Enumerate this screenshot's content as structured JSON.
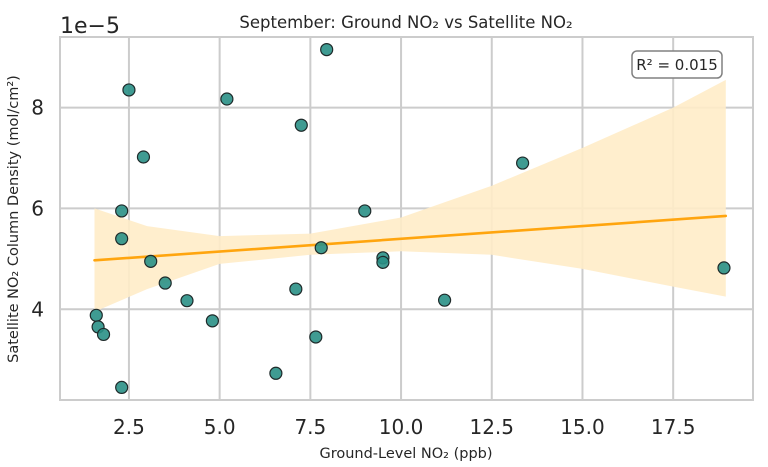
{
  "chart_data": {
    "type": "scatter",
    "title": "September: Ground NO₂ vs Satellite NO₂",
    "xlabel": "Ground-Level NO₂ (ppb)",
    "ylabel": "Satellite NO₂ Column Density (mol/cm²)",
    "y_offset_text": "1e−5",
    "annotation": {
      "r2_label": "R² = 0.015",
      "placement": "top-right"
    },
    "xlim": [
      0.6,
      19.7
    ],
    "ylim": [
      2.2,
      9.4
    ],
    "x_ticks": [
      2.5,
      5.0,
      7.5,
      10.0,
      12.5,
      15.0,
      17.5
    ],
    "x_tick_labels": [
      "2.5",
      "5.0",
      "7.5",
      "10.0",
      "12.5",
      "15.0",
      "17.5"
    ],
    "y_ticks": [
      4,
      6,
      8
    ],
    "y_tick_labels": [
      "4",
      "6",
      "8"
    ],
    "grid": true,
    "colors": {
      "points": "#2a9086",
      "point_edge": "#1e2a2a",
      "regression_line": "#ffa50f",
      "confidence_band": "#ffecc8",
      "grid": "#cccccc",
      "axes": "#cccccc"
    },
    "points": [
      {
        "x": 1.6,
        "y": 3.88
      },
      {
        "x": 1.65,
        "y": 3.65
      },
      {
        "x": 1.8,
        "y": 3.5
      },
      {
        "x": 2.3,
        "y": 2.45
      },
      {
        "x": 2.3,
        "y": 5.95
      },
      {
        "x": 2.3,
        "y": 5.4
      },
      {
        "x": 2.5,
        "y": 8.35
      },
      {
        "x": 2.9,
        "y": 7.02
      },
      {
        "x": 3.1,
        "y": 4.95
      },
      {
        "x": 3.5,
        "y": 4.52
      },
      {
        "x": 4.1,
        "y": 4.17
      },
      {
        "x": 4.8,
        "y": 3.77
      },
      {
        "x": 5.2,
        "y": 8.17
      },
      {
        "x": 6.55,
        "y": 2.73
      },
      {
        "x": 7.1,
        "y": 4.4
      },
      {
        "x": 7.25,
        "y": 7.65
      },
      {
        "x": 7.65,
        "y": 3.45
      },
      {
        "x": 7.8,
        "y": 5.22
      },
      {
        "x": 7.95,
        "y": 9.15
      },
      {
        "x": 9.0,
        "y": 5.95
      },
      {
        "x": 9.5,
        "y": 5.02
      },
      {
        "x": 9.5,
        "y": 4.93
      },
      {
        "x": 11.2,
        "y": 4.18
      },
      {
        "x": 13.35,
        "y": 6.9
      },
      {
        "x": 18.9,
        "y": 4.82
      }
    ],
    "regression": {
      "x": [
        1.55,
        18.95
      ],
      "y": [
        4.97,
        5.85
      ]
    },
    "confidence_band": {
      "x": [
        1.55,
        3.0,
        5.0,
        7.5,
        10.0,
        12.5,
        15.0,
        17.5,
        18.95
      ],
      "upper": [
        6.0,
        5.65,
        5.45,
        5.5,
        5.82,
        6.45,
        7.2,
        8.0,
        8.55
      ],
      "lower": [
        3.95,
        4.4,
        4.9,
        5.08,
        5.15,
        5.08,
        4.8,
        4.45,
        4.25
      ]
    }
  }
}
